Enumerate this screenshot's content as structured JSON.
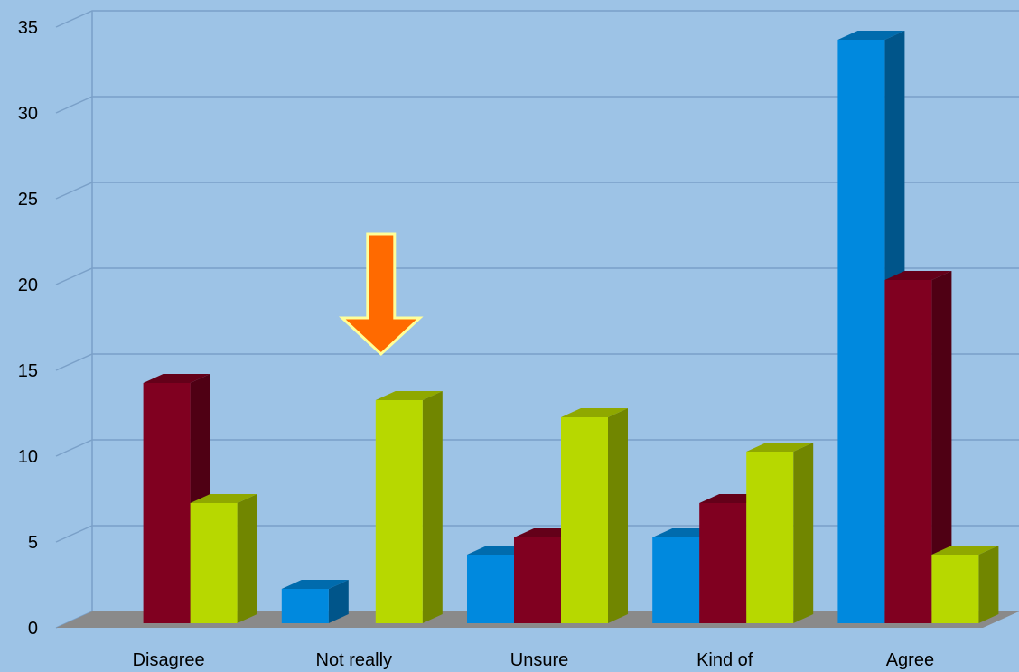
{
  "chart_data": {
    "type": "bar",
    "title": "",
    "xlabel": "",
    "ylabel": "",
    "categories": [
      "Disagree",
      "Not really",
      "Unsure",
      "Kind of",
      "Agree"
    ],
    "series": [
      {
        "values": [
          0,
          2,
          4,
          5,
          34
        ],
        "color": "#0089de"
      },
      {
        "values": [
          14,
          0,
          5,
          7,
          20
        ],
        "color": "#800020"
      },
      {
        "values": [
          7,
          13,
          12,
          10,
          4
        ],
        "color": "#b7d800"
      }
    ],
    "ylim": [
      0,
      35
    ],
    "yticks": [
      0,
      5,
      10,
      15,
      20,
      25,
      30,
      35
    ],
    "grid": true,
    "legend": "none",
    "style": "3d-column",
    "annotation": {
      "type": "arrow-down",
      "target_category": "Not really",
      "fill": "#ff6a00",
      "stroke": "#ffff99"
    },
    "colors": {
      "background": "#9dc3e6",
      "floor": "#8a8a8a",
      "grid": "#7aa0c8"
    }
  }
}
